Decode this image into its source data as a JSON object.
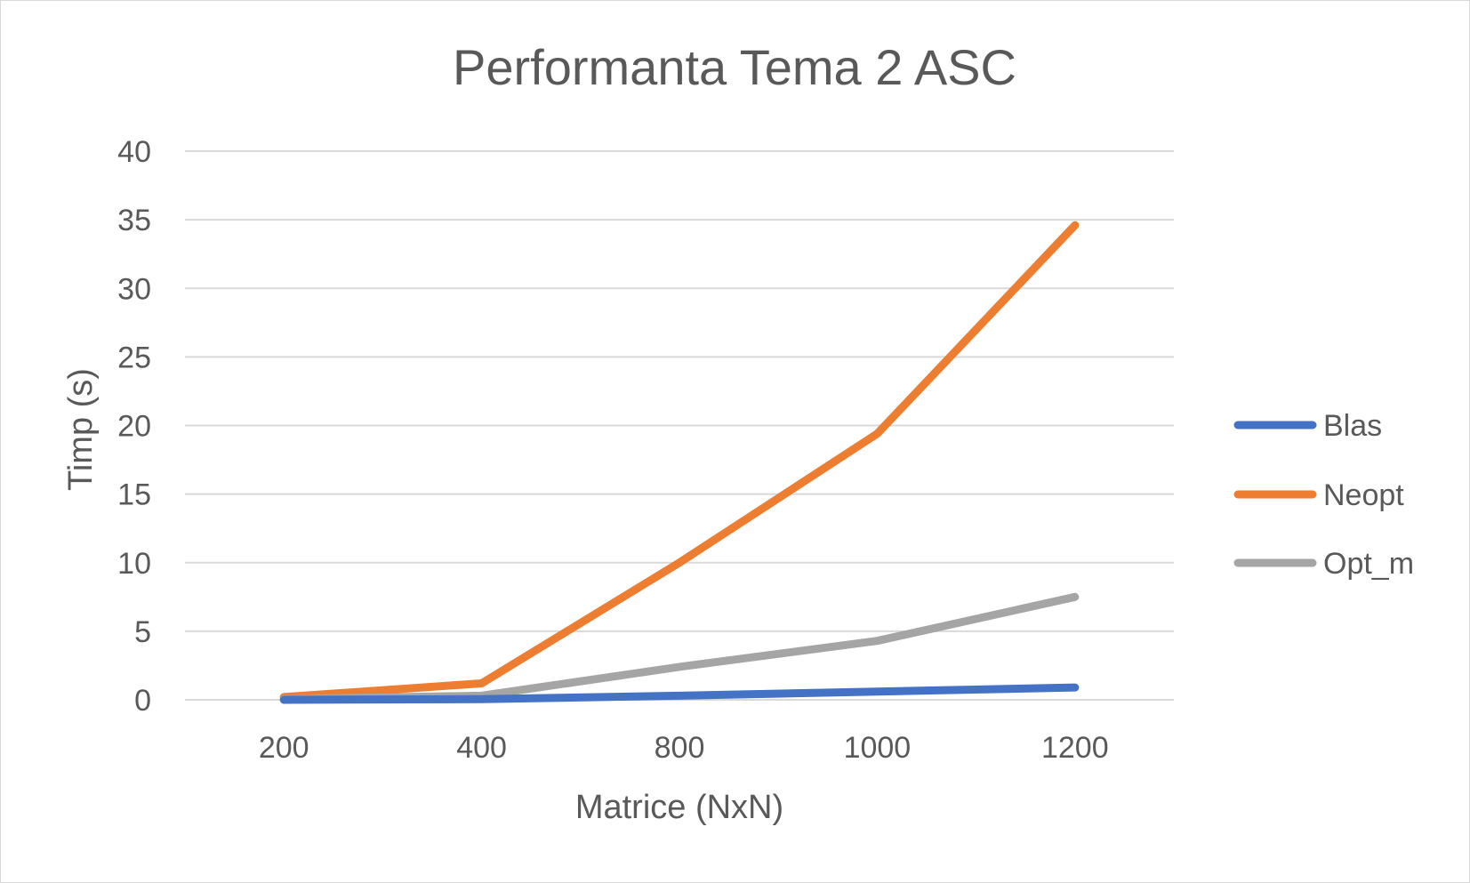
{
  "chart_data": {
    "type": "line",
    "title": "Performanta Tema 2 ASC",
    "xlabel": "Matrice (NxN)",
    "ylabel": "Timp (s)",
    "categories": [
      "200",
      "400",
      "800",
      "1000",
      "1200"
    ],
    "ylim": [
      0,
      40
    ],
    "yticks": [
      0,
      5,
      10,
      15,
      20,
      25,
      30,
      35,
      40
    ],
    "grid": true,
    "legend_position": "right",
    "series": [
      {
        "name": "Blas",
        "color": "#4472c4",
        "values": [
          0.0,
          0.05,
          0.3,
          0.6,
          0.9
        ]
      },
      {
        "name": "Neopt",
        "color": "#ed7d31",
        "values": [
          0.2,
          1.2,
          10.0,
          19.4,
          34.6
        ]
      },
      {
        "name": "Opt_m",
        "color": "#a5a5a5",
        "values": [
          0.05,
          0.3,
          2.4,
          4.3,
          7.5
        ]
      }
    ]
  }
}
